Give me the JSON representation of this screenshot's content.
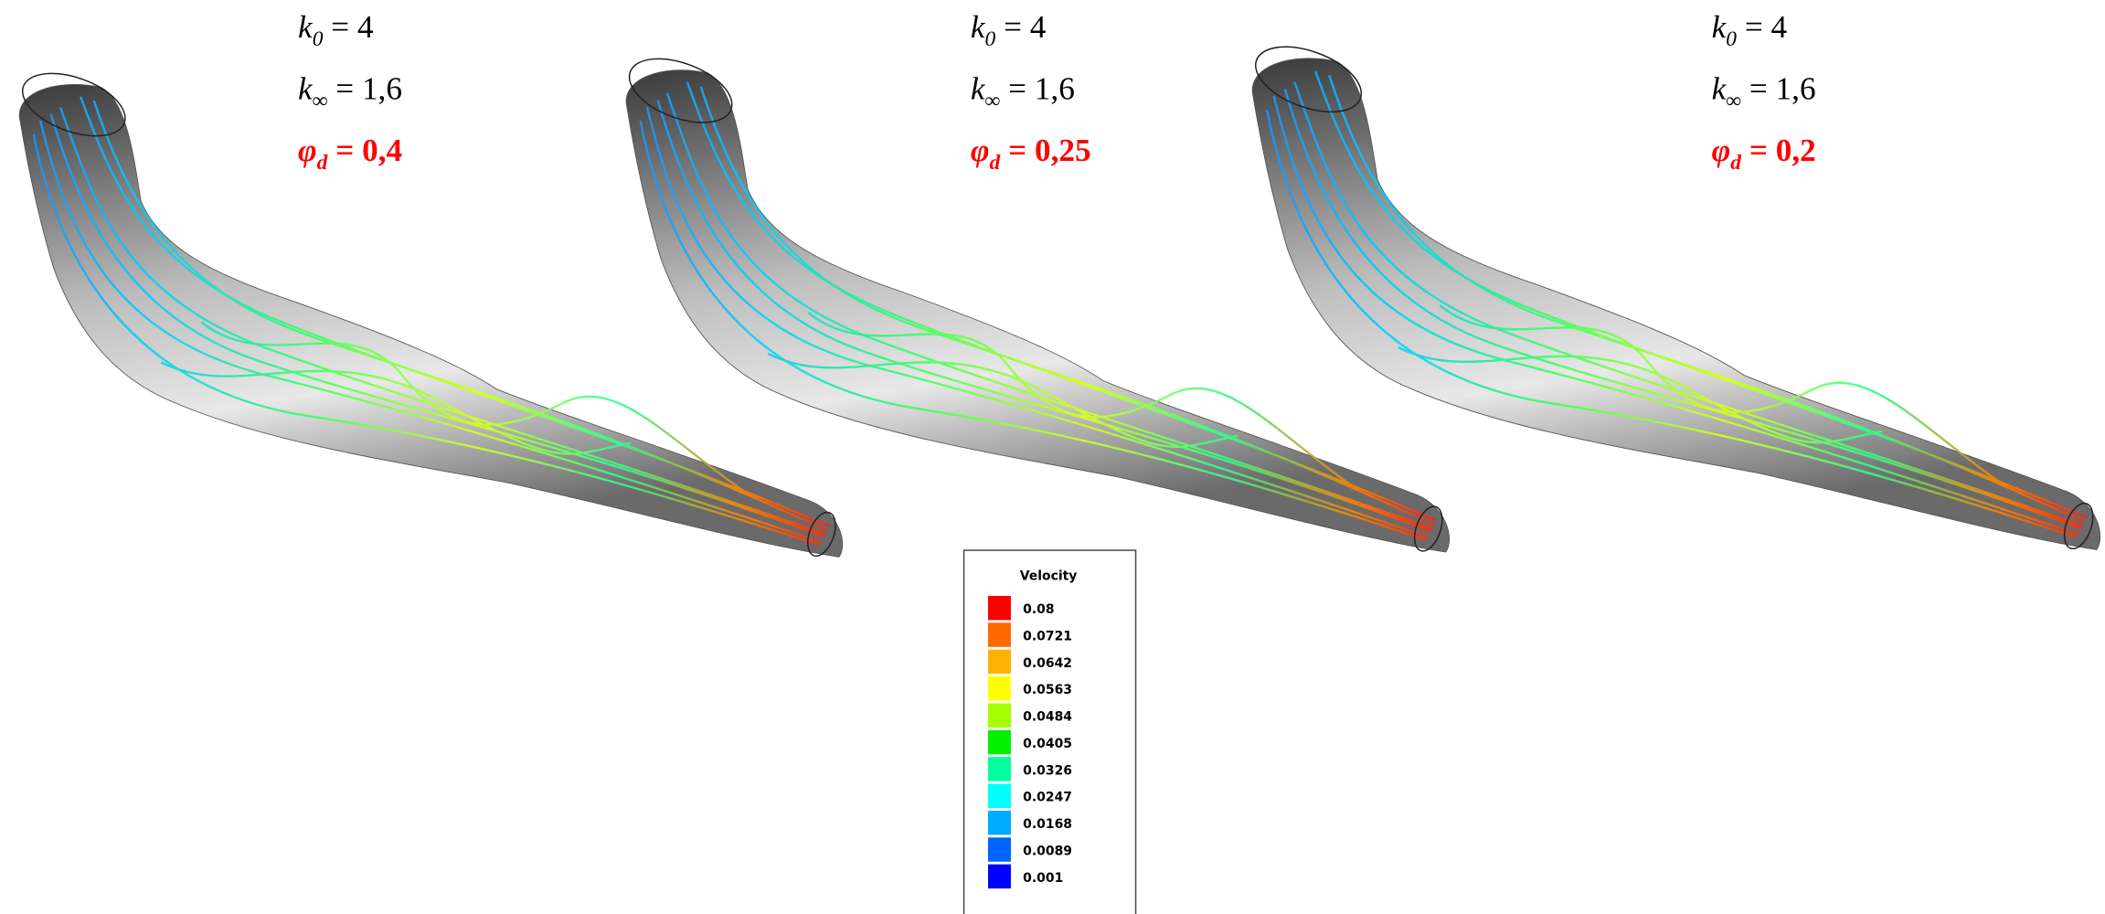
{
  "panels": [
    {
      "k0": {
        "symbol": "k",
        "subscript": "0",
        "value": "= 4"
      },
      "kinf": {
        "symbol": "k",
        "subscript": "∞",
        "value": "= 1,6"
      },
      "phi": {
        "symbol": "φ",
        "subscript": "d",
        "value": "= 0,4"
      }
    },
    {
      "k0": {
        "symbol": "k",
        "subscript": "0",
        "value": "= 4"
      },
      "kinf": {
        "symbol": "k",
        "subscript": "∞",
        "value": "= 1,6"
      },
      "phi": {
        "symbol": "φ",
        "subscript": "d",
        "value": "= 0,25"
      }
    },
    {
      "k0": {
        "symbol": "k",
        "subscript": "0",
        "value": "= 4"
      },
      "kinf": {
        "symbol": "k",
        "subscript": "∞",
        "value": "= 1,6"
      },
      "phi": {
        "symbol": "φ",
        "subscript": "d",
        "value": "= 0,2"
      }
    }
  ],
  "legend": {
    "title": "Velocity",
    "entries": [
      {
        "label": "0.08",
        "color": "#ff0000"
      },
      {
        "label": "0.0721",
        "color": "#ff6a00"
      },
      {
        "label": "0.0642",
        "color": "#ffb300"
      },
      {
        "label": "0.0563",
        "color": "#ffff00"
      },
      {
        "label": "0.0484",
        "color": "#a6ff00"
      },
      {
        "label": "0.0405",
        "color": "#00f000"
      },
      {
        "label": "0.0326",
        "color": "#00ff9c"
      },
      {
        "label": "0.0247",
        "color": "#00ffff"
      },
      {
        "label": "0.0168",
        "color": "#00aaff"
      },
      {
        "label": "0.0089",
        "color": "#0064ff"
      },
      {
        "label": "0.001",
        "color": "#0000ff"
      }
    ]
  }
}
